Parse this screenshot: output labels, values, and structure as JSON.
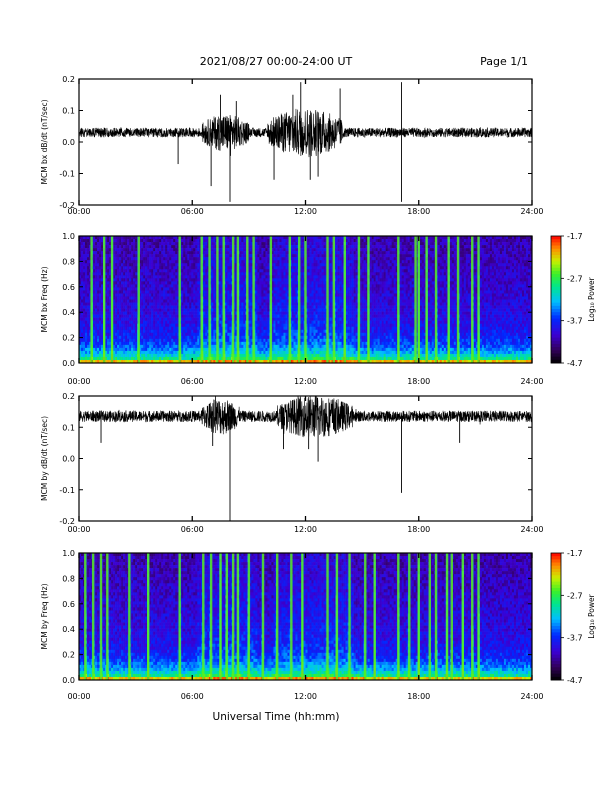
{
  "header": {
    "title": "2021/08/27  00:00-24:00 UT",
    "page": "Page 1/1"
  },
  "x_axis": {
    "label": "Universal Time (hh:mm)",
    "ticks": [
      "00:00",
      "06:00",
      "12:00",
      "18:00",
      "24:00"
    ]
  },
  "colorbar": {
    "label": "Log₁₀ Power",
    "ticks": [
      "-1.7",
      "-2.7",
      "-3.7",
      "-4.7"
    ]
  },
  "chart_data": [
    {
      "type": "line",
      "ylabel": "MCM bx dB/dt (nT/sec)",
      "ylim": [
        -0.2,
        0.2
      ],
      "xlim": [
        "00:00",
        "24:00"
      ],
      "yticks": [
        "0.2",
        "0.1",
        "0.0",
        "-0.1",
        "-0.2"
      ],
      "baseline": 0.03,
      "noise": 0.015,
      "active_windows": [
        {
          "start": "06:30",
          "end": "09:00",
          "amplitude": 0.06
        },
        {
          "start": "10:00",
          "end": "14:00",
          "amplitude": 0.08
        }
      ],
      "spikes": [
        {
          "time": "05:15",
          "value": -0.07
        },
        {
          "time": "07:00",
          "value": -0.14
        },
        {
          "time": "07:30",
          "value": 0.15
        },
        {
          "time": "08:00",
          "value": -0.19
        },
        {
          "time": "08:20",
          "value": 0.13
        },
        {
          "time": "10:20",
          "value": -0.12
        },
        {
          "time": "11:20",
          "value": 0.15
        },
        {
          "time": "11:45",
          "value": 0.19
        },
        {
          "time": "12:15",
          "value": -0.12
        },
        {
          "time": "12:40",
          "value": -0.11
        },
        {
          "time": "13:50",
          "value": 0.17
        },
        {
          "time": "17:05",
          "value": 0.19
        },
        {
          "time": "17:05",
          "value": -0.19
        }
      ]
    },
    {
      "type": "heatmap",
      "ylabel": "MCM bx Freq (Hz)",
      "ylim": [
        0.0,
        1.0
      ],
      "xlim": [
        "00:00",
        "24:00"
      ],
      "yticks": [
        "1.0",
        "0.8",
        "0.6",
        "0.4",
        "0.2",
        "0.0"
      ],
      "zlim": [
        -4.7,
        -1.7
      ],
      "zlabel": "Log₁₀ Power",
      "bright_stripes": [
        "00:40",
        "01:20",
        "01:45",
        "03:10",
        "05:20",
        "06:30",
        "06:55",
        "07:20",
        "07:40",
        "08:10",
        "08:25",
        "08:55",
        "09:15",
        "10:10",
        "11:10",
        "11:40",
        "12:00",
        "13:10",
        "13:30",
        "14:05",
        "14:50",
        "15:20",
        "16:55",
        "17:50",
        "18:00",
        "18:25",
        "18:55",
        "19:35",
        "20:05",
        "20:50",
        "21:10"
      ]
    },
    {
      "type": "line",
      "ylabel": "MCM by dB/dt (nT/sec)",
      "ylim": [
        -0.2,
        0.2
      ],
      "xlim": [
        "00:00",
        "24:00"
      ],
      "yticks": [
        "0.2",
        "0.1",
        "0.0",
        "-0.1",
        "-0.2"
      ],
      "baseline": 0.135,
      "noise": 0.018,
      "active_windows": [
        {
          "start": "06:30",
          "end": "08:30",
          "amplitude": 0.06
        },
        {
          "start": "10:30",
          "end": "14:30",
          "amplitude": 0.07
        }
      ],
      "spikes": [
        {
          "time": "01:10",
          "value": 0.05
        },
        {
          "time": "07:05",
          "value": 0.04
        },
        {
          "time": "08:00",
          "value": -0.2
        },
        {
          "time": "10:50",
          "value": 0.03
        },
        {
          "time": "12:10",
          "value": 0.03
        },
        {
          "time": "12:40",
          "value": -0.01
        },
        {
          "time": "17:05",
          "value": -0.11
        },
        {
          "time": "20:10",
          "value": 0.05
        }
      ]
    },
    {
      "type": "heatmap",
      "ylabel": "MCM by Freq (Hz)",
      "ylim": [
        0.0,
        1.0
      ],
      "xlim": [
        "00:00",
        "24:00"
      ],
      "yticks": [
        "1.0",
        "0.8",
        "0.6",
        "0.4",
        "0.2",
        "0.0"
      ],
      "zlim": [
        -4.7,
        -1.7
      ],
      "zlabel": "Log₁₀ Power",
      "bright_stripes": [
        "00:20",
        "00:45",
        "01:10",
        "01:30",
        "02:40",
        "03:40",
        "05:20",
        "06:35",
        "07:00",
        "07:30",
        "07:50",
        "08:10",
        "08:25",
        "09:00",
        "09:45",
        "10:30",
        "11:15",
        "11:50",
        "13:10",
        "13:40",
        "14:20",
        "15:10",
        "15:40",
        "16:55",
        "17:30",
        "18:00",
        "18:35",
        "18:55",
        "19:30",
        "19:45",
        "20:20",
        "20:50",
        "21:10"
      ]
    }
  ]
}
